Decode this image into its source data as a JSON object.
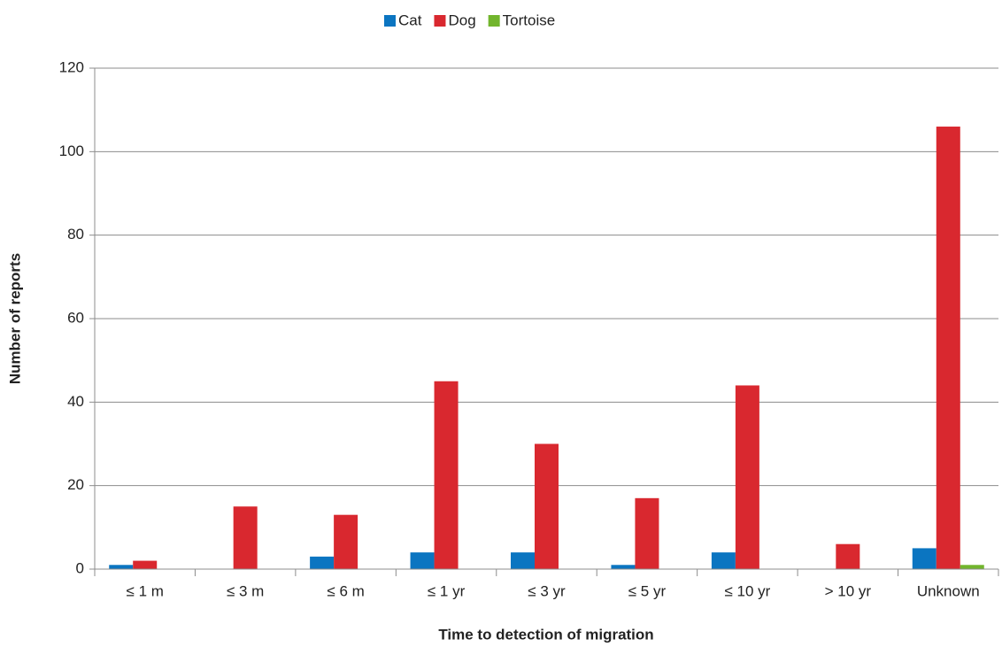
{
  "chart_data": {
    "type": "bar",
    "x_label": "Time to detection of migration",
    "y_label": "Number of reports",
    "categories": [
      "≤ 1 m",
      "≤ 3 m",
      "≤ 6 m",
      "≤ 1 yr",
      "≤ 3 yr",
      "≤ 5 yr",
      "≤ 10 yr",
      "> 10 yr",
      "Unknown"
    ],
    "series": [
      {
        "name": "Cat",
        "color": "#0b75c1",
        "values": [
          1,
          0,
          3,
          4,
          4,
          1,
          4,
          0,
          5
        ]
      },
      {
        "name": "Dog",
        "color": "#d9282f",
        "values": [
          2,
          15,
          13,
          45,
          30,
          17,
          44,
          6,
          106
        ]
      },
      {
        "name": "Tortoise",
        "color": "#72b52d",
        "values": [
          0,
          0,
          0,
          0,
          0,
          0,
          0,
          0,
          1
        ]
      }
    ],
    "ylim": [
      0,
      120
    ],
    "yticks": [
      0,
      20,
      40,
      60,
      80,
      100,
      120
    ],
    "grid": true,
    "legend": "top"
  }
}
